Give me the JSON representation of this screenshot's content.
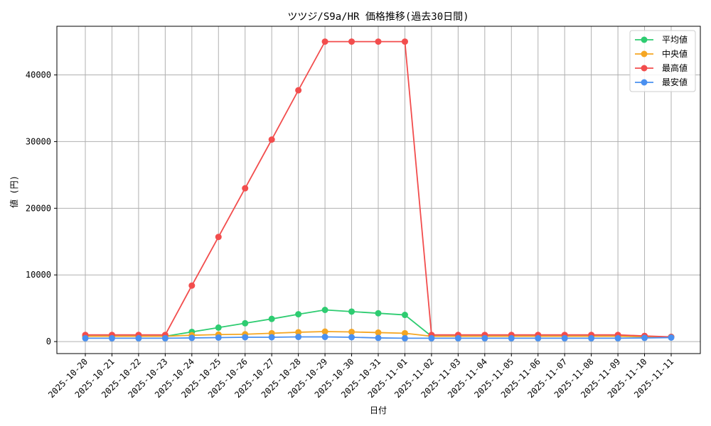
{
  "chart_data": {
    "type": "line",
    "title": "ツツジ/S9a/HR 価格推移(過去30日間)",
    "xlabel": "日付",
    "ylabel": "値 (円)",
    "ylim": [
      -1800,
      47300
    ],
    "yticks": [
      0,
      10000,
      20000,
      30000,
      40000
    ],
    "ytick_labels": [
      "0",
      "10000",
      "20000",
      "30000",
      "40000"
    ],
    "grid": true,
    "legend_position": "top-right",
    "categories": [
      "2025-10-20",
      "2025-10-21",
      "2025-10-22",
      "2025-10-23",
      "2025-10-24",
      "2025-10-25",
      "2025-10-26",
      "2025-10-27",
      "2025-10-28",
      "2025-10-29",
      "2025-10-30",
      "2025-10-31",
      "2025-11-01",
      "2025-11-02",
      "2025-11-03",
      "2025-11-04",
      "2025-11-05",
      "2025-11-06",
      "2025-11-07",
      "2025-11-08",
      "2025-11-09",
      "2025-11-10",
      "2025-11-11"
    ],
    "series": [
      {
        "name": "平均値",
        "color": "#2ecc71",
        "values": [
          800,
          800,
          800,
          800,
          1450,
          2100,
          2750,
          3400,
          4100,
          4750,
          4500,
          4250,
          4000,
          800,
          800,
          800,
          800,
          800,
          800,
          800,
          800,
          750,
          700
        ]
      },
      {
        "name": "中央値",
        "color": "#f5a623",
        "values": [
          800,
          800,
          800,
          800,
          950,
          1050,
          1100,
          1250,
          1400,
          1500,
          1450,
          1350,
          1250,
          800,
          800,
          800,
          800,
          800,
          800,
          800,
          800,
          750,
          700
        ]
      },
      {
        "name": "最高値",
        "color": "#f24d4d",
        "values": [
          1000,
          1000,
          1000,
          1000,
          8400,
          15700,
          23000,
          30300,
          37700,
          45000,
          45000,
          45000,
          45000,
          1000,
          1000,
          1000,
          1000,
          1000,
          1000,
          1000,
          1000,
          850,
          700
        ]
      },
      {
        "name": "最安値",
        "color": "#4a90f0",
        "values": [
          500,
          500,
          500,
          500,
          550,
          600,
          650,
          650,
          700,
          700,
          650,
          550,
          500,
          500,
          500,
          500,
          500,
          500,
          500,
          500,
          500,
          550,
          600
        ]
      }
    ]
  }
}
